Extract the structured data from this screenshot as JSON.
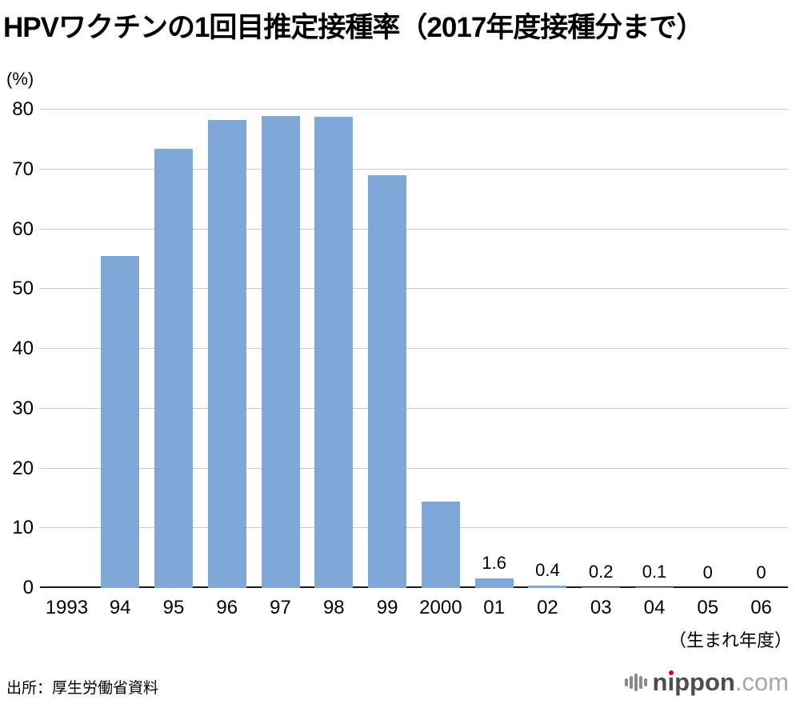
{
  "chart_data": {
    "type": "bar",
    "title": "HPVワクチンの1回目推定接種率（2017年度接種分まで）",
    "unit_label": "(%)",
    "x_axis_note": "（生まれ年度）",
    "bar_color": "#7FA8D8",
    "gridline_color": "#c9c9c9",
    "ylim": [
      0,
      80
    ],
    "ytick_step": 10,
    "grid": true,
    "legend": false,
    "categories": [
      "1993",
      "94",
      "95",
      "96",
      "97",
      "98",
      "99",
      "2000",
      "01",
      "02",
      "03",
      "04",
      "05",
      "06"
    ],
    "values": [
      null,
      55.5,
      73.5,
      78.3,
      78.9,
      78.8,
      69.0,
      14.4,
      1.6,
      0.4,
      0.2,
      0.1,
      0,
      0
    ],
    "data_labels": [
      null,
      null,
      null,
      null,
      null,
      null,
      null,
      null,
      "1.6",
      "0.4",
      "0.2",
      "0.1",
      "0",
      "0"
    ]
  },
  "footer": {
    "source": "出所：厚生労働省資料",
    "logo": {
      "brand": "nippon",
      "suffix": ".com",
      "accent_color": "#e60012"
    }
  }
}
